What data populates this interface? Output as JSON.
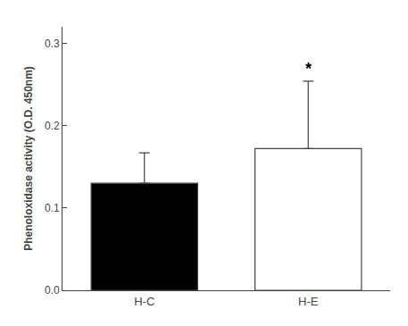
{
  "chart_data": {
    "type": "bar",
    "categories": [
      "H-C",
      "H-E"
    ],
    "values": [
      0.13,
      0.172
    ],
    "error_upper": [
      0.037,
      0.082
    ],
    "error_lower": [
      0.0,
      0.0
    ],
    "colors": [
      "#000000",
      "#ffffff"
    ],
    "ylabel": "Phenoloxidase activity (O.D. 450nm)",
    "ylim": [
      0.0,
      0.32
    ],
    "yticks": [
      {
        "value": 0.0,
        "label": "0.0"
      },
      0.1,
      0.2,
      0.3
    ],
    "annotations": [
      {
        "category": "H-E",
        "text": "*"
      }
    ],
    "grid": false
  }
}
